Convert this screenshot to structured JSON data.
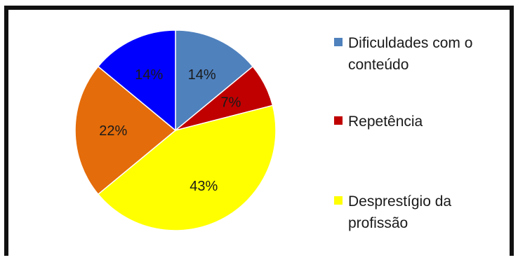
{
  "chart_data": {
    "type": "pie",
    "title": "",
    "slices": [
      {
        "label": "Dificuldades com o conteúdo",
        "value": 14,
        "value_label": "14%",
        "color": "#4f81bd"
      },
      {
        "label": "",
        "value": 7,
        "value_label": "7%",
        "color": "#c00000"
      },
      {
        "label": "Despresígio da profissão",
        "value": 43,
        "value_label": "43%",
        "color": "#ffff00"
      },
      {
        "label": "",
        "value": 22,
        "value_label": "22%",
        "color": "#e46c0a"
      },
      {
        "label": "",
        "value": 14,
        "value_label": "14%",
        "color": "#0000ff"
      }
    ],
    "legend_position": "right",
    "legend": [
      {
        "label": "Dificuldades com o conteúdo",
        "color": "#4f81bd"
      },
      {
        "label": "Repetência",
        "color": "#c00000"
      },
      {
        "label": "Desprestígio da profissão",
        "color": "#ffff00"
      }
    ]
  }
}
